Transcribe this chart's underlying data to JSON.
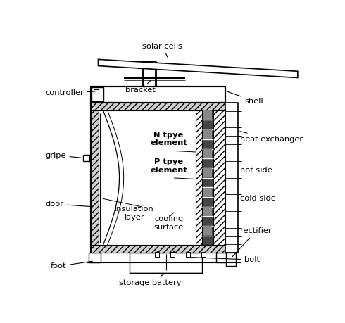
{
  "bg_color": "#ffffff",
  "line_color": "#000000",
  "labels": {
    "solar_cells": "solar cells",
    "bracket": "bracket",
    "shell": "shell",
    "controller": "controller",
    "heat_exchanger": "heat exchanger",
    "N_type": "N tpye\nelement",
    "P_type": "P tpye\nelement",
    "hot_side": "hot side",
    "cold_side": "cold side",
    "insulation_layer": "insulation\nlayer",
    "cooling_surface": "cooling\nsurface",
    "gripe": "gripe",
    "door": "door",
    "rectifier": "rectifier",
    "foot": "foot",
    "bolt": "bolt",
    "storage_battery": "storage battery"
  },
  "figsize": [
    4.9,
    4.59
  ],
  "dpi": 100
}
